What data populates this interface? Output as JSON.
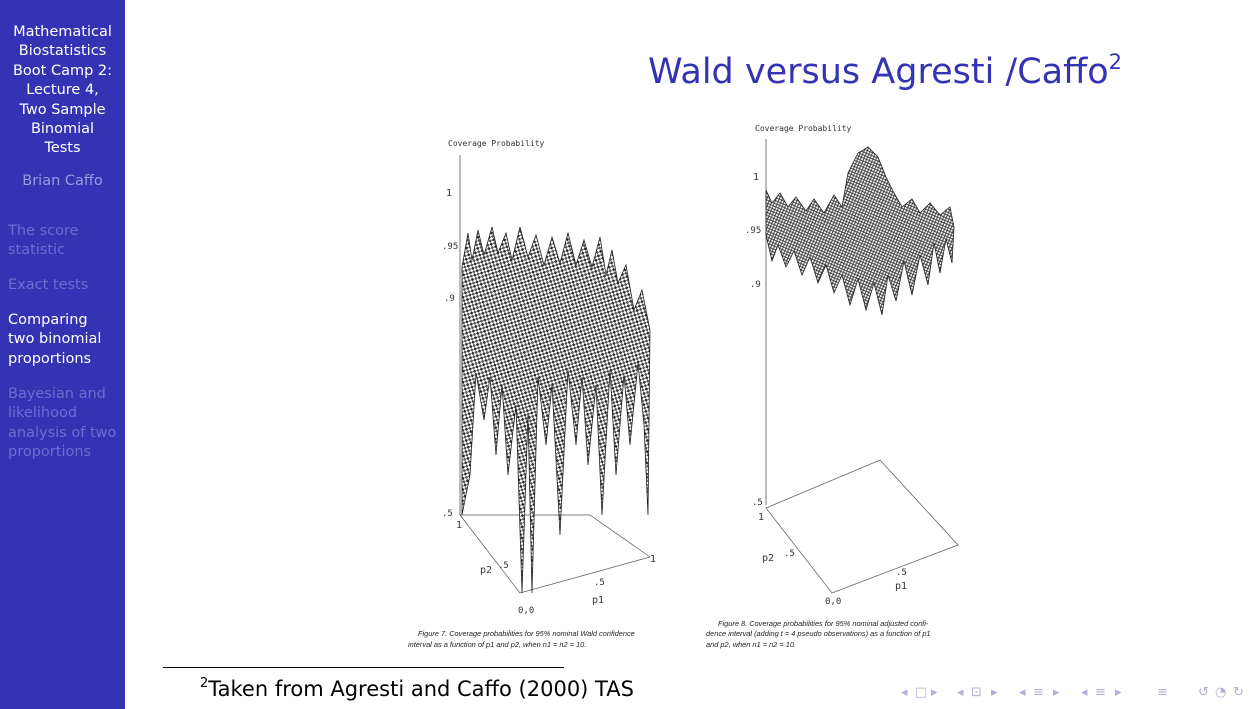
{
  "sidebar": {
    "title_lines": [
      "Mathematical",
      "Biostatistics",
      "Boot Camp 2:",
      "Lecture 4,",
      "Two Sample",
      "Binomial",
      "Tests"
    ],
    "author": "Brian Caffo",
    "sections": [
      {
        "lines": [
          "The score",
          "statistic"
        ],
        "active": false
      },
      {
        "lines": [
          "Exact tests"
        ],
        "active": false
      },
      {
        "lines": [
          "Comparing",
          "two binomial",
          "proportions"
        ],
        "active": true
      },
      {
        "lines": [
          "Bayesian and",
          "likelihood",
          "analysis of two",
          "proportions"
        ],
        "active": false
      }
    ]
  },
  "slide": {
    "title": "Wald versus Agresti /Caffo",
    "title_footnote_mark": "2"
  },
  "figure": {
    "left": {
      "zlabel": "Coverage Probability",
      "ticks": [
        "1",
        ".95",
        ".9",
        ".5"
      ],
      "axis_p2": "p2",
      "axis_p1": "p1",
      "tick_half": ".5",
      "tick_one": "1",
      "origin": "0,0",
      "caption_lines": [
        "Figure 7.  Coverage probabilities for 95% nominal Wald confidence",
        "interval as a function of p1 and p2, when n1 = n2 = 10."
      ]
    },
    "right": {
      "zlabel": "Coverage Probability",
      "ticks": [
        "1",
        ".95",
        ".9",
        ".5"
      ],
      "axis_p2": "p2",
      "axis_p1": "p1",
      "tick_half": ".5",
      "tick_one": "1",
      "origin": "0,0",
      "caption_lines": [
        "Figure 8.  Coverage probabilities for 95% nominal adjusted confi-",
        "dence interval (adding t = 4 pseudo observations) as a function of p1",
        "and p2, when n1 = n2 = 10."
      ]
    }
  },
  "footnote": {
    "mark": "2",
    "text": "Taken from Agresti and Caffo (2000) TAS"
  },
  "navigation": [
    "◂",
    "□",
    "▸",
    "◂",
    "⊡",
    "▸",
    "◂",
    "≡",
    "▸",
    "◂",
    "≡",
    "▸",
    "≡",
    "↺",
    "◔",
    "↻"
  ]
}
